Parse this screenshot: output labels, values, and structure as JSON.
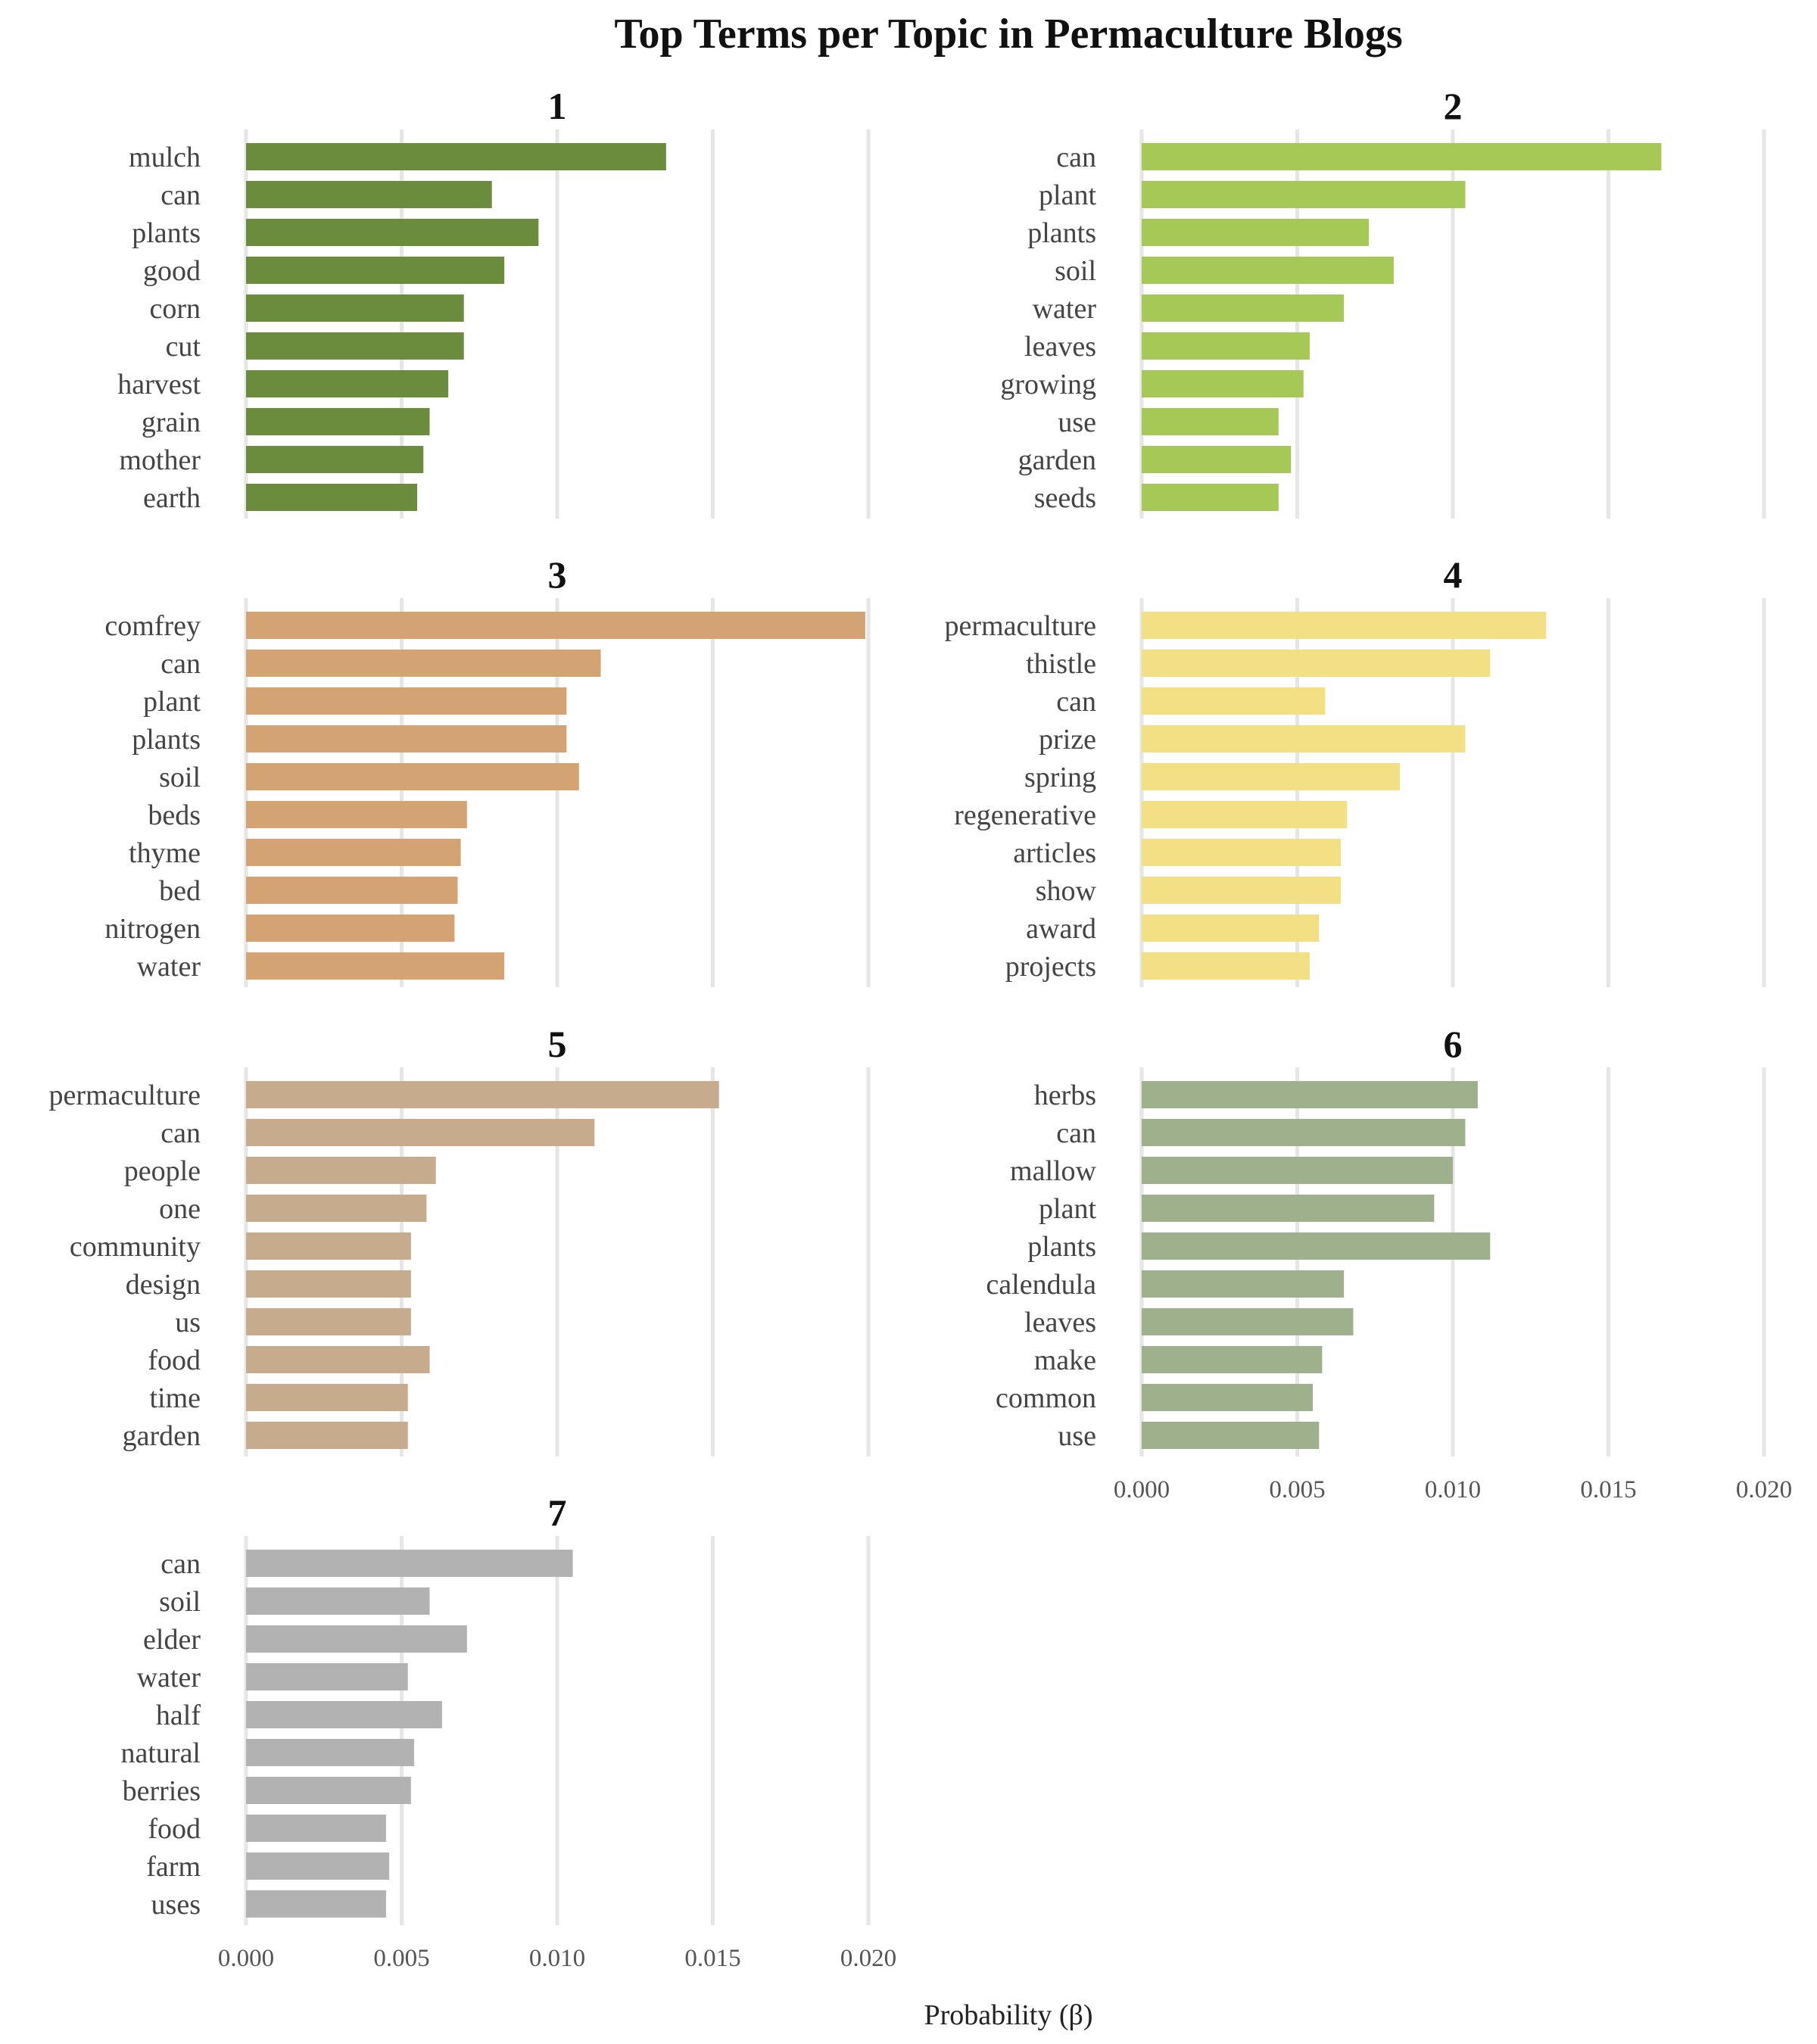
{
  "chart_data": {
    "type": "bar",
    "orientation": "horizontal",
    "title": "Top Terms per Topic in Permaculture Blogs",
    "xlabel": "Probability (β)",
    "ylabel": "",
    "xlim": [
      0,
      0.02
    ],
    "x_ticks": [
      "0.000",
      "0.005",
      "0.010",
      "0.015",
      "0.020"
    ],
    "grid": true,
    "legend": "none",
    "facets": [
      {
        "label": "1",
        "color": "#6b8b3d",
        "terms": [
          "mulch",
          "can",
          "plants",
          "good",
          "corn",
          "cut",
          "harvest",
          "grain",
          "mother",
          "earth"
        ],
        "values": [
          0.0135,
          0.0079,
          0.0094,
          0.0083,
          0.007,
          0.007,
          0.0065,
          0.0059,
          0.0057,
          0.0055
        ]
      },
      {
        "label": "2",
        "color": "#a6c856",
        "terms": [
          "can",
          "plant",
          "plants",
          "soil",
          "water",
          "leaves",
          "growing",
          "use",
          "garden",
          "seeds"
        ],
        "values": [
          0.0167,
          0.0104,
          0.0073,
          0.0081,
          0.0065,
          0.0054,
          0.0052,
          0.0044,
          0.0048,
          0.0044
        ]
      },
      {
        "label": "3",
        "color": "#d4a373",
        "terms": [
          "comfrey",
          "can",
          "plant",
          "plants",
          "soil",
          "beds",
          "thyme",
          "bed",
          "nitrogen",
          "water"
        ],
        "values": [
          0.0199,
          0.0114,
          0.0103,
          0.0103,
          0.0107,
          0.0071,
          0.0069,
          0.0068,
          0.0067,
          0.0083
        ]
      },
      {
        "label": "4",
        "color": "#f3e085",
        "terms": [
          "permaculture",
          "thistle",
          "can",
          "prize",
          "spring",
          "regenerative",
          "articles",
          "show",
          "award",
          "projects"
        ],
        "values": [
          0.013,
          0.0112,
          0.0059,
          0.0104,
          0.0083,
          0.0066,
          0.0064,
          0.0064,
          0.0057,
          0.0054
        ]
      },
      {
        "label": "5",
        "color": "#c6ab8d",
        "terms": [
          "permaculture",
          "can",
          "people",
          "one",
          "community",
          "design",
          "us",
          "food",
          "time",
          "garden"
        ],
        "values": [
          0.0152,
          0.0112,
          0.0061,
          0.0058,
          0.0053,
          0.0053,
          0.0053,
          0.0059,
          0.0052,
          0.0052
        ]
      },
      {
        "label": "6",
        "color": "#9fb08c",
        "terms": [
          "herbs",
          "can",
          "mallow",
          "plant",
          "plants",
          "calendula",
          "leaves",
          "make",
          "common",
          "use"
        ],
        "values": [
          0.0108,
          0.0104,
          0.01,
          0.0094,
          0.0112,
          0.0065,
          0.0068,
          0.0058,
          0.0055,
          0.0057
        ]
      },
      {
        "label": "7",
        "color": "#b2b2b2",
        "terms": [
          "can",
          "soil",
          "elder",
          "water",
          "half",
          "natural",
          "berries",
          "food",
          "farm",
          "uses"
        ],
        "values": [
          0.0105,
          0.0059,
          0.0071,
          0.0052,
          0.0063,
          0.0054,
          0.0053,
          0.0045,
          0.0046,
          0.0045
        ]
      }
    ]
  }
}
